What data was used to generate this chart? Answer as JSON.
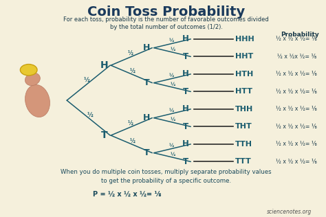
{
  "title": "Coin Toss Probability",
  "subtitle_line1": "For each toss, probability is the number of favorable outcomes divided",
  "subtitle_line2": "by the total number of outcomes (1/2).",
  "bg_color": "#f5f0dc",
  "title_color": "#1a3a5c",
  "tree_color": "#1a5c6e",
  "line_color": "#2a2a2a",
  "text_color": "#1a3a4a",
  "footer_color": "#1a4a5c",
  "prob_header": "Probability",
  "outcomes": [
    "HHH",
    "HHT",
    "HTH",
    "HTT",
    "THH",
    "THT",
    "TTH",
    "TTT"
  ],
  "leaf_labels": [
    "H",
    "T",
    "H",
    "T",
    "H",
    "T",
    "H",
    "T"
  ],
  "prob_texts": [
    "½ x ½ x ½= ⅛",
    "½ x ½x ½= ⅛",
    "½ x ½ x ½= ⅛",
    "½ x ½ x ½= ⅛",
    "½ x ½ x ½= ⅛",
    "½ x ½ x ½= ⅛",
    "½ x ½ x ½= ⅛",
    "½ x ½ x ½= ⅛"
  ],
  "footer1": "When you do multiple coin tosses, multiply separate probability values",
  "footer2": "to get the probability of a specific outcome.",
  "footer3": "P = ½ x ½ x ½= ⅛",
  "watermark": "sciencenotes.org",
  "half": "½"
}
